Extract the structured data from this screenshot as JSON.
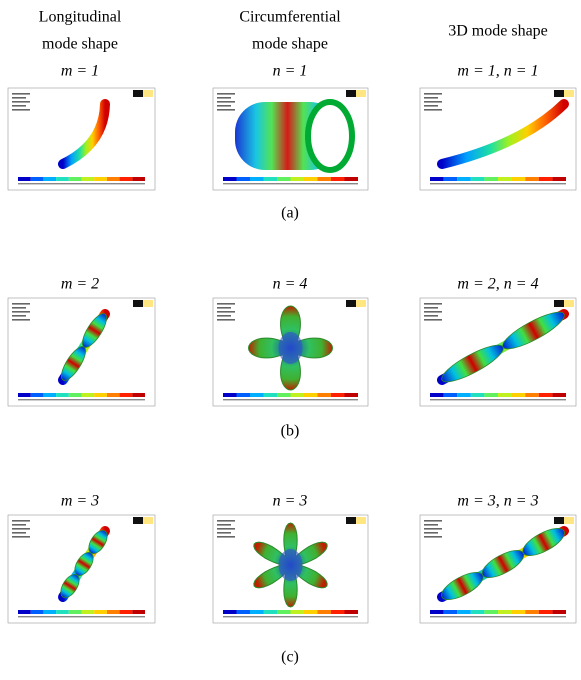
{
  "columns": [
    {
      "lines": [
        "Longitudinal",
        "mode shape"
      ]
    },
    {
      "lines": [
        "Circumferential",
        "mode shape"
      ]
    },
    {
      "lines": [
        "3D mode shape"
      ]
    }
  ],
  "rows": [
    {
      "label": "(a)",
      "panels": [
        "m = 1",
        "n = 1",
        "m = 1, n = 1"
      ]
    },
    {
      "label": "(b)",
      "panels": [
        "m = 2",
        "n = 4",
        "m = 2, n = 4"
      ]
    },
    {
      "label": "(c)",
      "panels": [
        "m = 3",
        "n = 3",
        "m = 3, n = 3"
      ]
    }
  ]
}
